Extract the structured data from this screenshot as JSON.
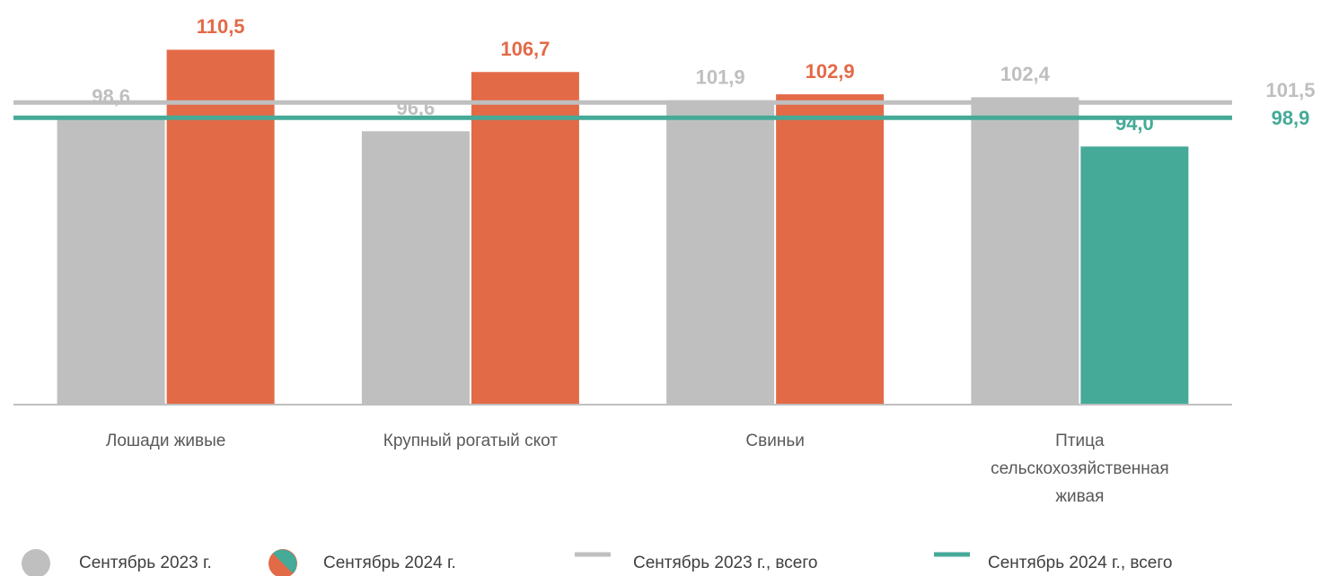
{
  "chart_data": {
    "type": "bar",
    "categories": [
      "Лошади живые",
      "Крупный рогатый скот",
      "Свиньи",
      "Птица сельскохозяйственная живая"
    ],
    "series": [
      {
        "name": "Сентябрь 2023 г.",
        "color": "#bfbfbf",
        "values": [
          98.6,
          96.6,
          101.9,
          102.4
        ],
        "value_labels": [
          "98,6",
          "96,6",
          "101,9",
          "102,4"
        ]
      },
      {
        "name": "Сентябрь 2024 г.",
        "colors": [
          "#e36a47",
          "#e36a47",
          "#e36a47",
          "#45aa98"
        ],
        "values": [
          110.5,
          106.7,
          102.9,
          94.0
        ],
        "value_labels": [
          "110,5",
          "106,7",
          "102,9",
          "94,0"
        ]
      }
    ],
    "reference_lines": [
      {
        "name": "Сентябрь 2023 г., всего",
        "value": 101.5,
        "label": "101,5",
        "color": "#bfbfbf"
      },
      {
        "name": "Сентябрь 2024 г., всего",
        "value": 98.9,
        "label": "98,9",
        "color": "#45aa98"
      }
    ],
    "ylim": [
      50,
      115
    ]
  }
}
